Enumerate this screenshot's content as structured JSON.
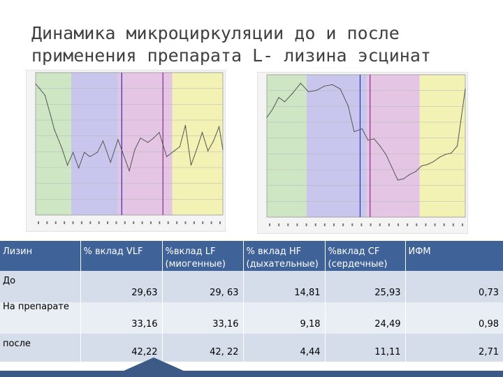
{
  "title": {
    "line1": "Динамика микроциркуляции до и после",
    "line2": "применения препарата L- лизина эсцинат"
  },
  "colors": {
    "band_vlf": "#cfe6c4",
    "band_lf": "#c9c6ee",
    "band_hf": "#e4c6e4",
    "band_cf": "#f2f2b4",
    "curve": "#555555",
    "marker_blue": "#2b2bb8",
    "marker_purple": "#8a2a8a",
    "table_header": "#3f6298",
    "table_row_dark": "#d5ddea",
    "table_row_light": "#e9edf4"
  },
  "chart_data": [
    {
      "type": "line",
      "title": "",
      "xlabel": "",
      "ylabel": "",
      "x": [
        0,
        0.02,
        0.05,
        0.08,
        0.1,
        0.14,
        0.17,
        0.2,
        0.23,
        0.26,
        0.29,
        0.33,
        0.36,
        0.4,
        0.44,
        0.47,
        0.5,
        0.53,
        0.56,
        0.6,
        0.63,
        0.66,
        0.7,
        0.74,
        0.77,
        0.8,
        0.83,
        0.86,
        0.89,
        0.92,
        0.95,
        0.98,
        1.0
      ],
      "values": [
        0.92,
        0.89,
        0.84,
        0.7,
        0.6,
        0.47,
        0.35,
        0.44,
        0.33,
        0.44,
        0.41,
        0.44,
        0.52,
        0.37,
        0.53,
        0.42,
        0.31,
        0.46,
        0.54,
        0.51,
        0.54,
        0.58,
        0.41,
        0.45,
        0.48,
        0.63,
        0.35,
        0.46,
        0.58,
        0.45,
        0.52,
        0.62,
        0.46
      ],
      "bands": [
        {
          "name": "VLF",
          "from": 0.0,
          "to": 0.19
        },
        {
          "name": "LF",
          "from": 0.19,
          "to": 0.44
        },
        {
          "name": "HF",
          "from": 0.44,
          "to": 0.73
        },
        {
          "name": "CF",
          "from": 0.73,
          "to": 1.0
        }
      ],
      "markers": [
        0.46,
        0.68
      ],
      "grid": true
    },
    {
      "type": "line",
      "title": "",
      "xlabel": "",
      "ylabel": "",
      "x": [
        0,
        0.03,
        0.06,
        0.09,
        0.13,
        0.17,
        0.21,
        0.25,
        0.29,
        0.33,
        0.37,
        0.41,
        0.44,
        0.48,
        0.51,
        0.54,
        0.57,
        0.6,
        0.63,
        0.66,
        0.69,
        0.72,
        0.75,
        0.78,
        0.81,
        0.84,
        0.87,
        0.9,
        0.93,
        0.96,
        0.98,
        1.0
      ],
      "values": [
        0.7,
        0.76,
        0.84,
        0.81,
        0.87,
        0.94,
        0.88,
        0.89,
        0.92,
        0.93,
        0.9,
        0.78,
        0.6,
        0.62,
        0.54,
        0.55,
        0.5,
        0.44,
        0.35,
        0.26,
        0.27,
        0.3,
        0.32,
        0.36,
        0.37,
        0.39,
        0.42,
        0.44,
        0.45,
        0.5,
        0.7,
        0.9
      ],
      "bands": [
        {
          "name": "VLF",
          "from": 0.0,
          "to": 0.2
        },
        {
          "name": "LF",
          "from": 0.2,
          "to": 0.5
        },
        {
          "name": "HF",
          "from": 0.5,
          "to": 0.77
        },
        {
          "name": "CF",
          "from": 0.77,
          "to": 1.0
        }
      ],
      "markers": [
        0.47,
        0.52
      ],
      "grid": true
    },
    {
      "type": "table",
      "columns": [
        "Лизин",
        "% вклад VLF",
        "%вклад LF (миогенные)",
        "% вклад HF (дыхательные)",
        "%вклад CF (сердечные)",
        "ИФМ"
      ],
      "rows": [
        {
          "label": "До",
          "values": [
            29.63,
            29.63,
            14.81,
            25.93,
            0.73
          ]
        },
        {
          "label": "На препарате",
          "values": [
            33.16,
            33.16,
            9.18,
            24.49,
            0.98
          ]
        },
        {
          "label": "после",
          "values": [
            42.22,
            42.22,
            4.44,
            11.11,
            2.71
          ]
        }
      ]
    }
  ],
  "table": {
    "headers": {
      "lizin": "Лизин",
      "vlf": "% вклад VLF",
      "lf_1": "%вклад LF",
      "lf_2": "(миогенные)",
      "hf_1": "% вклад HF",
      "hf_2": "(дыхательные)",
      "cf_1": "%вклад CF",
      "cf_2": "(сердечные)",
      "ifm": "ИФМ"
    },
    "rows": [
      {
        "label": "До",
        "vlf": "29,63",
        "lf": "29, 63",
        "hf": "14,81",
        "cf": "25,93",
        "ifm": "0,73"
      },
      {
        "label": "",
        "vlf": "33,16",
        "lf": "33,16",
        "hf": "9,18",
        "cf": "24,49",
        "ifm": "0,98"
      },
      {
        "label": "после",
        "vlf": "42,22",
        "lf": "42, 22",
        "hf": "4,44",
        "cf": "11,11",
        "ifm": "2,71"
      }
    ],
    "row2_label_text": "На препарате"
  }
}
